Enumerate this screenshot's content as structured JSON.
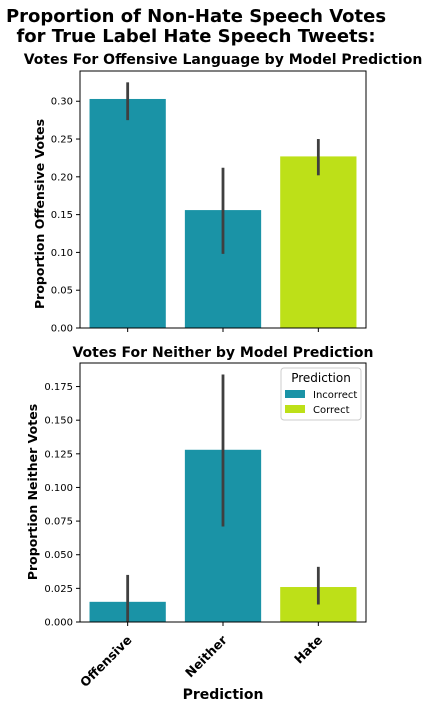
{
  "figure": {
    "suptitle_line1": "Proportion of Non-Hate Speech Votes",
    "suptitle_line2": "for True Label Hate Speech Tweets:",
    "xlabel": "Prediction"
  },
  "colors": {
    "incorrect": "#1a93a6",
    "correct": "#bde018",
    "error_bar": "#3f3f3f",
    "axes": "#000000"
  },
  "legend": {
    "title": "Prediction",
    "placement": "top-right of lower panel",
    "entries": [
      "Incorrect",
      "Correct"
    ]
  },
  "chart_data": [
    {
      "type": "bar",
      "title": "Votes For Offensive Language by Model Prediction",
      "xlabel": "",
      "ylabel": "Proportion Offensive Votes",
      "categories": [
        "Offensive",
        "Neither",
        "Hate"
      ],
      "values": [
        0.303,
        0.156,
        0.227
      ],
      "error_low": [
        0.275,
        0.098,
        0.202
      ],
      "error_high": [
        0.325,
        0.212,
        0.25
      ],
      "bar_status": [
        "Incorrect",
        "Incorrect",
        "Correct"
      ],
      "ylim": [
        0,
        0.34
      ],
      "yticks": [
        "0.00",
        "0.05",
        "0.10",
        "0.15",
        "0.20",
        "0.25",
        "0.30"
      ],
      "show_xtick_labels": false,
      "grid": false
    },
    {
      "type": "bar",
      "title": "Votes For Neither by Model Prediction",
      "xlabel": "Prediction",
      "ylabel": "Proportion Neither Votes",
      "categories": [
        "Offensive",
        "Neither",
        "Hate"
      ],
      "values": [
        0.015,
        0.128,
        0.026
      ],
      "error_low": [
        0.0,
        0.071,
        0.013
      ],
      "error_high": [
        0.035,
        0.184,
        0.041
      ],
      "bar_status": [
        "Incorrect",
        "Incorrect",
        "Correct"
      ],
      "ylim": [
        0,
        0.1925
      ],
      "yticks": [
        "0.000",
        "0.025",
        "0.050",
        "0.075",
        "0.100",
        "0.125",
        "0.150",
        "0.175"
      ],
      "show_xtick_labels": true,
      "grid": false
    }
  ]
}
